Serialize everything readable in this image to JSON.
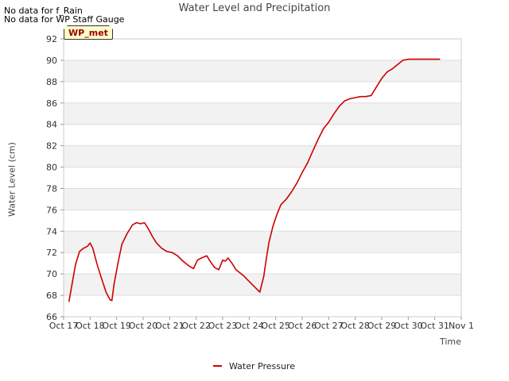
{
  "header": {
    "nodata_lines": [
      "No data for f_Rain",
      "No data for WP Staff Gauge"
    ],
    "badge": "WP_met"
  },
  "chart_data": {
    "type": "line",
    "title": "Water Level and Precipitation",
    "xlabel": "Time",
    "ylabel": "Water Level (cm)",
    "xlim": [
      0,
      15
    ],
    "ylim": [
      66,
      92
    ],
    "x_tick_values": [
      0,
      1,
      2,
      3,
      4,
      5,
      6,
      7,
      8,
      9,
      10,
      11,
      12,
      13,
      14,
      15
    ],
    "x_tick_labels": [
      "Oct 17",
      "Oct 18",
      "Oct 19",
      "Oct 20",
      "Oct 21",
      "Oct 22",
      "Oct 23",
      "Oct 24",
      "Oct 25",
      "Oct 26",
      "Oct 27",
      "Oct 28",
      "Oct 29",
      "Oct 30",
      "Oct 31",
      "Nov 1"
    ],
    "y_ticks": [
      66,
      68,
      70,
      72,
      74,
      76,
      78,
      80,
      82,
      84,
      86,
      88,
      90,
      92
    ],
    "grid": "horizontal bands",
    "legend_position": "bottom-center",
    "series": [
      {
        "name": "Water Pressure",
        "color": "#cc0000",
        "x": [
          0.2,
          0.3,
          0.45,
          0.6,
          0.75,
          0.9,
          1.0,
          1.1,
          1.25,
          1.4,
          1.6,
          1.75,
          1.82,
          1.9,
          2.05,
          2.2,
          2.4,
          2.6,
          2.75,
          2.9,
          3.05,
          3.2,
          3.35,
          3.5,
          3.7,
          3.9,
          4.1,
          4.3,
          4.5,
          4.7,
          4.9,
          5.05,
          5.2,
          5.4,
          5.55,
          5.7,
          5.85,
          6.0,
          6.1,
          6.2,
          6.35,
          6.5,
          6.65,
          6.8,
          7.0,
          7.2,
          7.4,
          7.55,
          7.65,
          7.75,
          7.9,
          8.05,
          8.2,
          8.4,
          8.6,
          8.8,
          9.0,
          9.2,
          9.4,
          9.6,
          9.8,
          10.0,
          10.2,
          10.4,
          10.6,
          10.8,
          11.0,
          11.2,
          11.4,
          11.6,
          11.8,
          12.0,
          12.2,
          12.4,
          12.6,
          12.8,
          13.0,
          13.2,
          13.4,
          13.6,
          13.8,
          14.0,
          14.2
        ],
        "values": [
          67.4,
          68.8,
          70.9,
          72.1,
          72.4,
          72.6,
          72.9,
          72.4,
          71.0,
          69.8,
          68.3,
          67.6,
          67.5,
          69.0,
          71.0,
          72.8,
          73.8,
          74.6,
          74.8,
          74.7,
          74.8,
          74.2,
          73.5,
          72.9,
          72.4,
          72.1,
          72.0,
          71.7,
          71.2,
          70.8,
          70.5,
          71.3,
          71.5,
          71.7,
          71.1,
          70.6,
          70.4,
          71.3,
          71.2,
          71.5,
          71.0,
          70.4,
          70.1,
          69.8,
          69.3,
          68.8,
          68.3,
          69.8,
          71.5,
          73.0,
          74.5,
          75.6,
          76.5,
          77.0,
          77.7,
          78.5,
          79.5,
          80.4,
          81.5,
          82.6,
          83.6,
          84.2,
          85.0,
          85.7,
          86.2,
          86.4,
          86.5,
          86.6,
          86.6,
          86.7,
          87.5,
          88.3,
          88.9,
          89.2,
          89.6,
          90.0,
          90.1,
          90.1,
          90.1,
          90.1,
          90.1,
          90.1,
          90.1
        ]
      }
    ]
  }
}
